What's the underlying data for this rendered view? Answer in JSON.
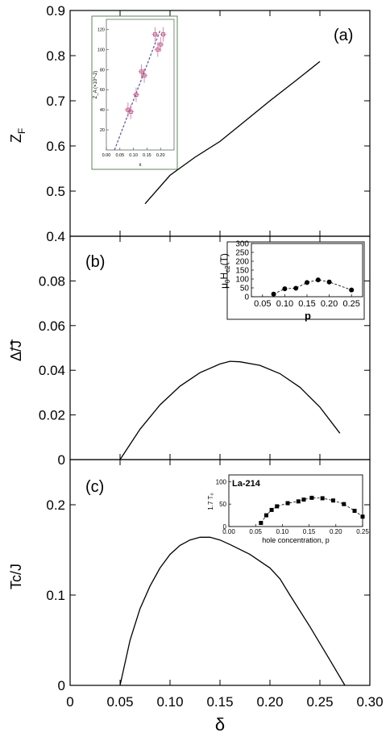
{
  "chart_data": [
    {
      "type": "line",
      "panel_label": "(a)",
      "ylabel": "Z",
      "ylabel_sub": "F",
      "xlim": [
        0,
        0.3
      ],
      "ylim": [
        0.4,
        0.9
      ],
      "yticks": [
        "0.4",
        "0.5",
        "0.6",
        "0.7",
        "0.8",
        "0.9"
      ],
      "ytick_values": [
        0.4,
        0.5,
        0.6,
        0.7,
        0.8,
        0.9
      ],
      "x": [
        0.075,
        0.1,
        0.125,
        0.15,
        0.175,
        0.2,
        0.225,
        0.25
      ],
      "y": [
        0.472,
        0.535,
        0.575,
        0.61,
        0.655,
        0.7,
        0.743,
        0.787
      ],
      "inset": {
        "type": "scatter",
        "xlabel": "x",
        "ylabel": "Z_A (×10^-2)",
        "xlim": [
          0,
          0.25
        ],
        "ylim": [
          0,
          130
        ],
        "xticks": [
          "0.00",
          "0.05",
          "0.10",
          "0.15",
          "0.20"
        ],
        "xtick_values": [
          0,
          0.05,
          0.1,
          0.15,
          0.2
        ],
        "yticks": [
          "20",
          "40",
          "60",
          "80",
          "100",
          "120"
        ],
        "ytick_values": [
          20,
          40,
          60,
          80,
          100,
          120
        ],
        "points_x": [
          0.08,
          0.09,
          0.11,
          0.13,
          0.14,
          0.18,
          0.19,
          0.2,
          0.21
        ],
        "points_y": [
          40,
          38,
          55,
          78,
          74,
          115,
          100,
          105,
          115
        ],
        "fit_x": [
          0.03,
          0.2
        ],
        "fit_y": [
          0,
          120
        ]
      }
    },
    {
      "type": "line",
      "panel_label": "(b)",
      "ylabel": "Δ/J",
      "xlim": [
        0,
        0.3
      ],
      "ylim": [
        0,
        0.1
      ],
      "yticks": [
        "0",
        "0.02",
        "0.04",
        "0.06",
        "0.08"
      ],
      "ytick_values": [
        0,
        0.02,
        0.04,
        0.06,
        0.08
      ],
      "x": [
        0.05,
        0.07,
        0.09,
        0.11,
        0.13,
        0.15,
        0.16,
        0.17,
        0.19,
        0.21,
        0.23,
        0.25,
        0.27
      ],
      "y": [
        0.0,
        0.0136,
        0.0245,
        0.0329,
        0.0389,
        0.0428,
        0.044,
        0.0438,
        0.0422,
        0.0385,
        0.0324,
        0.0235,
        0.0118
      ],
      "inset": {
        "type": "line",
        "xlabel": "p",
        "ylabel": "μ0Hc2(T)",
        "xlim": [
          0.025,
          0.275
        ],
        "ylim": [
          0,
          300
        ],
        "xticks": [
          "0.05",
          "0.10",
          "0.15",
          "0.20",
          "0.25"
        ],
        "xtick_values": [
          0.05,
          0.1,
          0.15,
          0.2,
          0.25
        ],
        "yticks": [
          "0",
          "50",
          "100",
          "150",
          "200",
          "250",
          "300"
        ],
        "ytick_values": [
          0,
          50,
          100,
          150,
          200,
          250,
          300
        ],
        "x": [
          0.075,
          0.1,
          0.125,
          0.15,
          0.175,
          0.2,
          0.25
        ],
        "y": [
          15,
          45,
          48,
          80,
          95,
          83,
          38
        ]
      }
    },
    {
      "type": "line",
      "panel_label": "(c)",
      "ylabel": "Tc/J",
      "xlabel": "δ",
      "xlim": [
        0,
        0.3
      ],
      "ylim": [
        0,
        0.25
      ],
      "xticks": [
        "0",
        "0.05",
        "0.10",
        "0.15",
        "0.20",
        "0.25",
        "0.30"
      ],
      "xtick_values": [
        0,
        0.05,
        0.1,
        0.15,
        0.2,
        0.25,
        0.3
      ],
      "yticks": [
        "0",
        "0.1",
        "0.2"
      ],
      "ytick_values": [
        0,
        0.1,
        0.2
      ],
      "x": [
        0.05,
        0.06,
        0.07,
        0.08,
        0.09,
        0.1,
        0.11,
        0.12,
        0.13,
        0.14,
        0.15,
        0.16,
        0.18,
        0.2,
        0.21,
        0.22,
        0.24,
        0.26,
        0.275
      ],
      "y": [
        0.0,
        0.05,
        0.085,
        0.11,
        0.13,
        0.145,
        0.155,
        0.161,
        0.164,
        0.164,
        0.161,
        0.156,
        0.145,
        0.13,
        0.118,
        0.1,
        0.065,
        0.028,
        0.0
      ],
      "inset": {
        "type": "line",
        "title": "La-214",
        "xlabel": "hole concentration, p",
        "ylabel": "1.7 T₀",
        "xlim": [
          0,
          0.25
        ],
        "ylim": [
          0,
          115
        ],
        "xticks": [
          "0.00",
          "0.05",
          "0.10",
          "0.15",
          "0.20",
          "0.25"
        ],
        "xtick_values": [
          0,
          0.05,
          0.1,
          0.15,
          0.2,
          0.25
        ],
        "yticks": [
          "0",
          "50",
          "100"
        ],
        "ytick_values": [
          0,
          50,
          100
        ],
        "x": [
          0.06,
          0.07,
          0.08,
          0.09,
          0.11,
          0.13,
          0.14,
          0.155,
          0.175,
          0.195,
          0.215,
          0.235,
          0.25
        ],
        "y": [
          8,
          25,
          37,
          45,
          52,
          56,
          60,
          64,
          63,
          58,
          50,
          35,
          22
        ]
      }
    }
  ]
}
